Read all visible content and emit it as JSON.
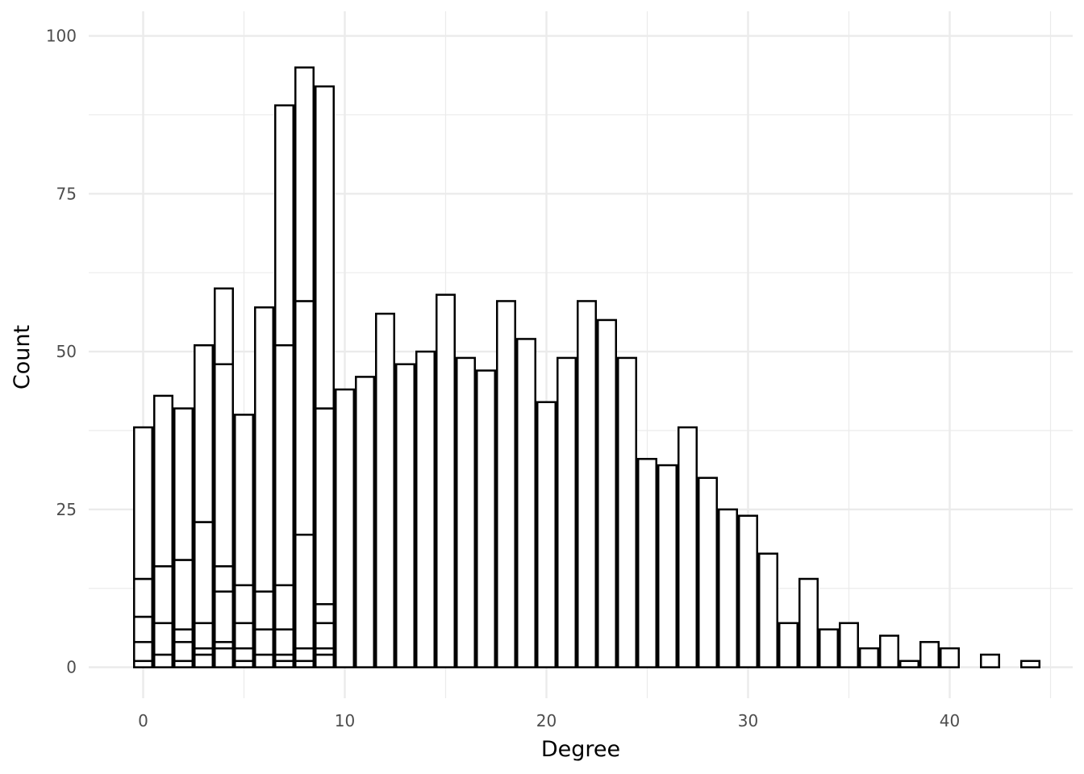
{
  "chart_data": {
    "type": "bar",
    "title": "",
    "xlabel": "Degree",
    "ylabel": "Count",
    "xlim": [
      -2.7,
      46.1
    ],
    "ylim": [
      -4.9,
      103.9
    ],
    "x_ticks": [
      0,
      10,
      20,
      30,
      40
    ],
    "y_ticks": [
      0,
      25,
      50,
      75,
      100
    ],
    "x_minor_grid": [
      5,
      15,
      25,
      35,
      45
    ],
    "y_minor_grid": [
      12.5,
      37.5,
      62.5,
      87.5
    ],
    "grid": true,
    "legend": "none",
    "bar_fill": "#ffffff",
    "bar_outline": "#000000",
    "grid_color": "#ebebeb",
    "series": [
      {
        "x": [
          0,
          1,
          2,
          3,
          4,
          5,
          6,
          7,
          8,
          9
        ],
        "values": [
          1,
          2,
          1,
          2,
          3,
          1,
          2,
          1,
          1,
          2
        ]
      },
      {
        "x": [
          0,
          1,
          2,
          3,
          4,
          5,
          6,
          7,
          8,
          9
        ],
        "values": [
          3,
          0,
          3,
          1,
          1,
          2,
          0,
          1,
          2,
          1
        ]
      },
      {
        "x": [
          0,
          1,
          2,
          3,
          4,
          5,
          6,
          7,
          8,
          9
        ],
        "values": [
          4,
          5,
          2,
          4,
          8,
          4,
          4,
          4,
          0,
          4
        ]
      },
      {
        "x": [
          0,
          1,
          2,
          3,
          4,
          5,
          6,
          7,
          8,
          9
        ],
        "values": [
          6,
          9,
          11,
          16,
          4,
          6,
          6,
          7,
          18,
          3
        ]
      },
      {
        "x": [
          0,
          1,
          2,
          3,
          4,
          5,
          6,
          7,
          8,
          9
        ],
        "values": [
          24,
          27,
          24,
          28,
          32,
          27,
          45,
          38,
          37,
          31
        ]
      },
      {
        "x": [
          0,
          1,
          2,
          3,
          4,
          5,
          6,
          7,
          8,
          9,
          10,
          11,
          12,
          13,
          14,
          15,
          16,
          17,
          18,
          19,
          20,
          21,
          22,
          23,
          24,
          25,
          26,
          27,
          28,
          29,
          30,
          31,
          32,
          33,
          34,
          35,
          36,
          37,
          38,
          39,
          40,
          42,
          44
        ],
        "values": [
          0,
          0,
          0,
          0,
          12,
          0,
          0,
          38,
          37,
          51,
          44,
          46,
          56,
          48,
          50,
          59,
          49,
          47,
          58,
          52,
          42,
          49,
          58,
          55,
          49,
          33,
          32,
          38,
          30,
          25,
          24,
          18,
          7,
          14,
          6,
          7,
          3,
          5,
          1,
          4,
          3,
          2,
          1
        ]
      }
    ]
  }
}
